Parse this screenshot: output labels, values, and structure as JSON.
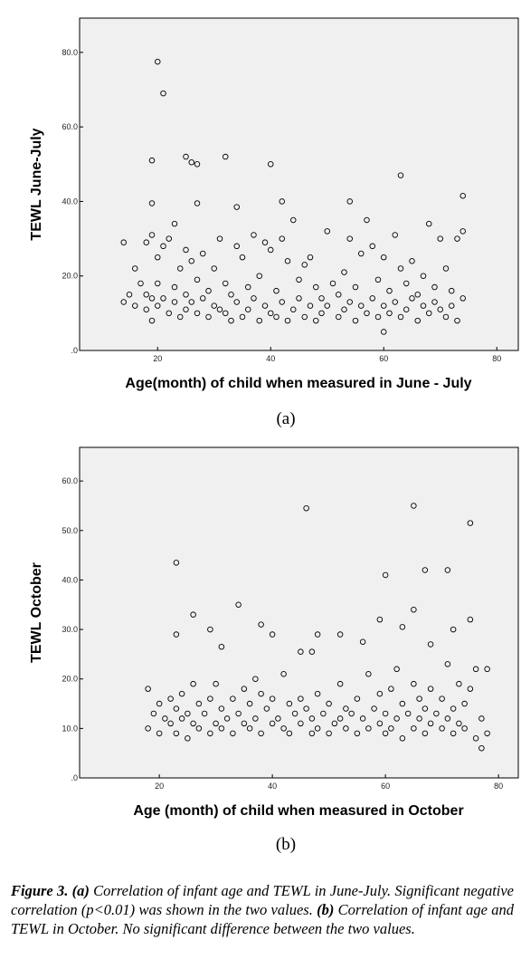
{
  "chart_data": [
    {
      "type": "scatter",
      "caption": "(a)",
      "xlabel": "Age(month) of child when measured in June - July",
      "ylabel": "TEWL June-July",
      "xlim": [
        6.2,
        83.8
      ],
      "ylim": [
        0,
        89.2
      ],
      "xticks": [
        20,
        40,
        60,
        80
      ],
      "yticks": [
        {
          "value": 0,
          "label": ".0"
        },
        {
          "value": 20,
          "label": "20.0"
        },
        {
          "value": 40,
          "label": "40.0"
        },
        {
          "value": 60,
          "label": "60.0"
        },
        {
          "value": 80,
          "label": "80.0"
        }
      ],
      "color": "#000000",
      "background": "#f0f0f0",
      "x": [
        14,
        14,
        15,
        16,
        16,
        17,
        18,
        18,
        18,
        19,
        19,
        19,
        20,
        20,
        20,
        21,
        21,
        22,
        22,
        23,
        23,
        23,
        24,
        24,
        25,
        25,
        25,
        26,
        26,
        27,
        27,
        28,
        28,
        29,
        29,
        30,
        30,
        31,
        31,
        32,
        32,
        33,
        33,
        34,
        34,
        35,
        35,
        36,
        36,
        37,
        37,
        38,
        38,
        39,
        39,
        40,
        40,
        41,
        41,
        42,
        42,
        43,
        43,
        44,
        44,
        45,
        45,
        46,
        46,
        47,
        47,
        48,
        48,
        49,
        49,
        50,
        50,
        51,
        52,
        52,
        53,
        53,
        54,
        54,
        55,
        55,
        56,
        56,
        57,
        57,
        58,
        58,
        59,
        59,
        60,
        60,
        60,
        61,
        61,
        62,
        62,
        63,
        63,
        64,
        64,
        65,
        65,
        66,
        66,
        67,
        67,
        68,
        68,
        69,
        69,
        70,
        70,
        71,
        71,
        72,
        72,
        73,
        73,
        74,
        74,
        20,
        21,
        19,
        25,
        26,
        27,
        32,
        40,
        63,
        42,
        54,
        74,
        19,
        27,
        34
      ],
      "values": [
        29,
        13,
        15,
        22,
        12,
        18,
        29,
        11,
        15,
        31,
        8,
        14,
        25,
        12,
        18,
        28,
        14,
        30,
        10,
        34,
        17,
        13,
        22,
        9,
        27,
        15,
        11,
        24,
        13,
        19,
        10,
        26,
        14,
        16,
        9,
        22,
        12,
        30,
        11,
        18,
        10,
        15,
        8,
        28,
        13,
        25,
        9,
        17,
        11,
        31,
        14,
        20,
        8,
        29,
        12,
        27,
        10,
        16,
        9,
        30,
        13,
        24,
        8,
        35,
        11,
        19,
        14,
        23,
        9,
        25,
        12,
        17,
        8,
        14,
        10,
        32,
        12,
        18,
        15,
        9,
        21,
        11,
        30,
        13,
        17,
        8,
        26,
        12,
        35,
        10,
        28,
        14,
        19,
        9,
        25,
        12,
        5,
        16,
        10,
        31,
        13,
        22,
        9,
        18,
        11,
        24,
        14,
        15,
        8,
        20,
        12,
        34,
        10,
        17,
        13,
        30,
        11,
        22,
        9,
        16,
        12,
        30,
        8,
        32,
        14,
        77.5,
        69,
        51,
        52,
        50.5,
        50,
        52,
        50,
        47,
        40,
        40,
        41.5,
        39.5,
        39.5,
        38.5
      ]
    },
    {
      "type": "scatter",
      "caption": "(b)",
      "xlabel": "Age (month) of child when measured in October",
      "ylabel": "TEWL October",
      "xlim": [
        5.9,
        83.5
      ],
      "ylim": [
        0,
        66.8
      ],
      "xticks": [
        20,
        40,
        60,
        80
      ],
      "yticks": [
        {
          "value": 0,
          "label": ".0"
        },
        {
          "value": 10,
          "label": "10.0"
        },
        {
          "value": 20,
          "label": "20.0"
        },
        {
          "value": 30,
          "label": "30.0"
        },
        {
          "value": 40,
          "label": "40.0"
        },
        {
          "value": 50,
          "label": "50.0"
        },
        {
          "value": 60,
          "label": "60.0"
        }
      ],
      "color": "#000000",
      "background": "#f0f0f0",
      "x": [
        18,
        18,
        19,
        20,
        20,
        21,
        22,
        22,
        23,
        23,
        24,
        24,
        25,
        25,
        26,
        26,
        27,
        27,
        28,
        29,
        29,
        30,
        30,
        31,
        31,
        32,
        33,
        33,
        34,
        35,
        35,
        36,
        36,
        37,
        37,
        38,
        38,
        39,
        40,
        40,
        41,
        42,
        42,
        43,
        43,
        44,
        45,
        45,
        46,
        47,
        47,
        48,
        48,
        49,
        50,
        50,
        51,
        52,
        52,
        53,
        53,
        54,
        55,
        55,
        56,
        57,
        57,
        58,
        59,
        59,
        60,
        60,
        61,
        61,
        62,
        62,
        63,
        63,
        64,
        65,
        65,
        66,
        66,
        67,
        67,
        68,
        68,
        69,
        70,
        70,
        71,
        71,
        72,
        72,
        73,
        73,
        74,
        74,
        75,
        76,
        76,
        77,
        77,
        78,
        78,
        23,
        46,
        65,
        75,
        60,
        67,
        71,
        34,
        65,
        75,
        59,
        26,
        38,
        29,
        63,
        72,
        48,
        52,
        40,
        23,
        31,
        45,
        47,
        56,
        68
      ],
      "values": [
        18,
        10,
        13,
        15,
        9,
        12,
        16,
        11,
        14,
        9,
        17,
        12,
        13,
        8,
        19,
        11,
        15,
        10,
        13,
        16,
        9,
        19,
        11,
        14,
        10,
        12,
        16,
        9,
        13,
        18,
        11,
        15,
        10,
        20,
        12,
        17,
        9,
        14,
        16,
        11,
        12,
        21,
        10,
        15,
        9,
        13,
        16,
        11,
        14,
        12,
        9,
        17,
        10,
        13,
        15,
        9,
        11,
        19,
        12,
        14,
        10,
        13,
        16,
        9,
        12,
        21,
        10,
        14,
        17,
        11,
        13,
        9,
        18,
        10,
        22,
        12,
        15,
        8,
        13,
        19,
        10,
        16,
        12,
        14,
        9,
        18,
        11,
        13,
        16,
        10,
        23,
        12,
        14,
        9,
        19,
        11,
        15,
        10,
        18,
        22,
        8,
        12,
        6,
        22,
        9,
        43.5,
        54.5,
        55,
        51.5,
        41,
        42,
        42,
        35,
        34,
        32,
        32,
        33,
        31,
        30,
        30.5,
        30,
        29,
        29,
        29,
        29,
        26.5,
        25.5,
        25.5,
        27.5,
        27
      ]
    }
  ],
  "figure_caption": [
    {
      "text": "Figure 3.",
      "bold": true
    },
    {
      "text": " (a)",
      "bold": true
    },
    {
      "text": " Correlation of infant age and TEWL in June-July. Significant negative correlation (p<0.01) was shown in the two values. ",
      "bold": false
    },
    {
      "text": "(b)",
      "bold": true
    },
    {
      "text": " Correlation of infant age and TEWL in October. No significant difference between the two values.",
      "bold": false
    }
  ]
}
